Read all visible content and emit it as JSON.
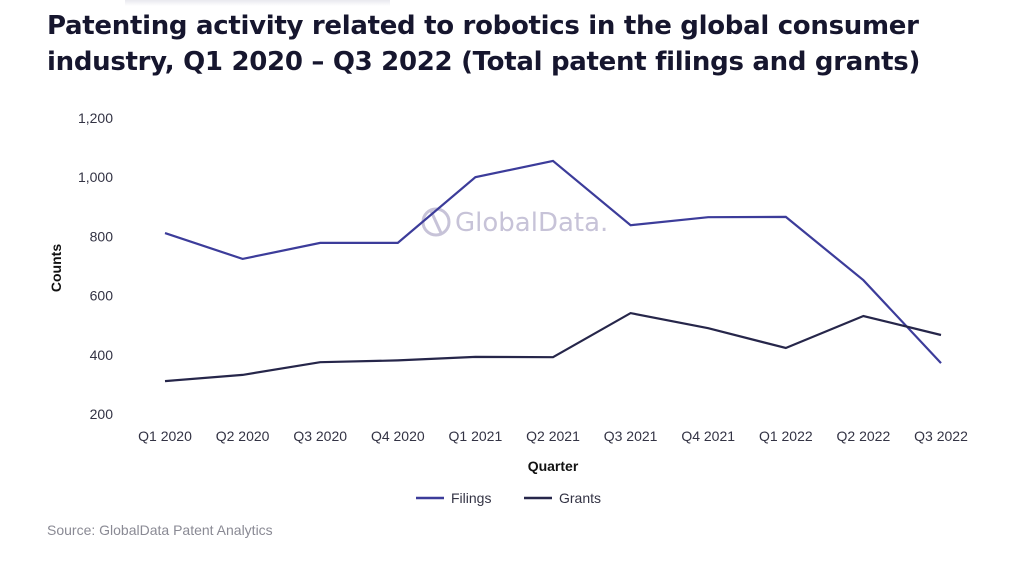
{
  "title_lines": [
    "Patenting activity related to robotics in the global consumer",
    "industry, Q1 2020 – Q3 2022 (Total patent filings and grants)"
  ],
  "watermark": "GlobalData.",
  "source": "Source: GlobalData Patent Analytics",
  "chart_data": {
    "type": "line",
    "title": "Patenting activity related to robotics in the global consumer industry, Q1 2020 – Q3 2022 (Total patent filings and grants)",
    "xlabel": "Quarter",
    "ylabel": "Counts",
    "categories": [
      "Q1 2020",
      "Q2 2020",
      "Q3 2020",
      "Q4 2020",
      "Q1 2021",
      "Q2 2021",
      "Q3 2021",
      "Q4 2021",
      "Q1 2022",
      "Q2 2022",
      "Q3 2022"
    ],
    "ylim": [
      200,
      1200
    ],
    "yticks": [
      200,
      400,
      600,
      800,
      1000,
      1200
    ],
    "ytick_labels": [
      "200",
      "400",
      "600",
      "800",
      "1,000",
      "1,200"
    ],
    "grid": false,
    "legend": "bottom-center",
    "series": [
      {
        "name": "Filings",
        "color": "#3c3c9a",
        "values": [
          811,
          724,
          778,
          778,
          1000,
          1055,
          838,
          865,
          866,
          652,
          372
        ]
      },
      {
        "name": "Grants",
        "color": "#26264a",
        "values": [
          311,
          332,
          375,
          381,
          393,
          392,
          541,
          490,
          423,
          531,
          467
        ]
      }
    ]
  }
}
